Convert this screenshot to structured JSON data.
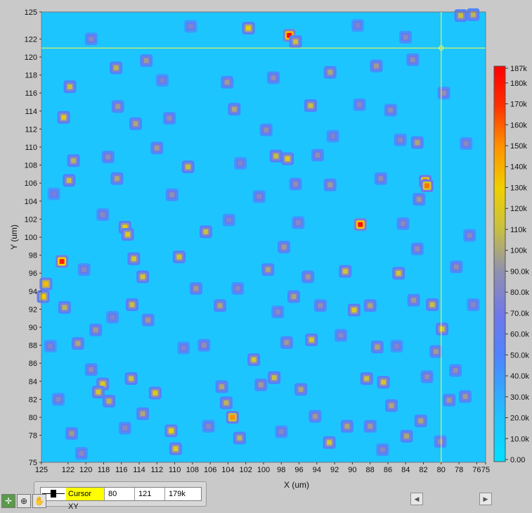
{
  "chart_data": {
    "type": "heatmap",
    "title": "",
    "xlabel": "X (um)",
    "ylabel": "Y (um)",
    "x_ticks": [
      125,
      122,
      120,
      118,
      116,
      114,
      112,
      110,
      108,
      106,
      104,
      102,
      100,
      98,
      96,
      94,
      92,
      90,
      88,
      86,
      84,
      82,
      80,
      78,
      76,
      75
    ],
    "x_tick_labels": [
      "125",
      "122",
      "120",
      "118",
      "116",
      "114",
      "112",
      "110",
      "108",
      "106",
      "104",
      "102",
      "100",
      "98",
      "96",
      "94",
      "92",
      "90",
      "88",
      "86",
      "84",
      "82",
      "80",
      "78",
      "76",
      "75"
    ],
    "y_ticks": [
      125,
      122,
      120,
      118,
      116,
      114,
      112,
      110,
      108,
      106,
      104,
      102,
      100,
      98,
      96,
      94,
      92,
      90,
      88,
      86,
      84,
      82,
      80,
      78,
      75
    ],
    "y_tick_labels": [
      "125",
      "122",
      "120",
      "118",
      "116",
      "114",
      "112",
      "110",
      "108",
      "106",
      "104",
      "102",
      "100",
      "98",
      "96",
      "94",
      "92",
      "90",
      "88",
      "86",
      "84",
      "82",
      "80",
      "78",
      "75"
    ],
    "xlim": [
      125,
      75
    ],
    "ylim": [
      75,
      125
    ],
    "colorbar": {
      "range": [
        0,
        187000
      ],
      "ticks": [
        0,
        10000,
        20000,
        30000,
        40000,
        50000,
        60000,
        70000,
        80000,
        90000,
        100000,
        110000,
        120000,
        130000,
        140000,
        150000,
        160000,
        170000,
        180000,
        187000
      ],
      "tick_labels": [
        "0.00",
        "10.0k",
        "20.0k",
        "30.0k",
        "40.0k",
        "50.0k",
        "60.0k",
        "70.0k",
        "80.0k",
        "90.0k",
        "100k",
        "110k",
        "120k",
        "130k",
        "140k",
        "150k",
        "160k",
        "170k",
        "180k",
        "187k"
      ]
    },
    "cursor": {
      "x": 80,
      "y": 121,
      "z": 179000
    },
    "background_level": 20000,
    "spots": [
      {
        "x": 122.5,
        "y": 113.3,
        "v": 120000
      },
      {
        "x": 121.8,
        "y": 116.7,
        "v": 110000
      },
      {
        "x": 121.4,
        "y": 108.5,
        "v": 105000
      },
      {
        "x": 121.9,
        "y": 106.3,
        "v": 110000
      },
      {
        "x": 123.6,
        "y": 104.8,
        "v": 75000
      },
      {
        "x": 122.7,
        "y": 97.3,
        "v": 175000
      },
      {
        "x": 124.5,
        "y": 94.8,
        "v": 135000
      },
      {
        "x": 124.8,
        "y": 93.4,
        "v": 130000
      },
      {
        "x": 122.4,
        "y": 92.2,
        "v": 105000
      },
      {
        "x": 118.9,
        "y": 89.7,
        "v": 95000
      },
      {
        "x": 120.9,
        "y": 88.2,
        "v": 100000
      },
      {
        "x": 119.4,
        "y": 85.3,
        "v": 90000
      },
      {
        "x": 118.1,
        "y": 83.7,
        "v": 120000
      },
      {
        "x": 118.6,
        "y": 82.8,
        "v": 115000
      },
      {
        "x": 117.4,
        "y": 81.8,
        "v": 105000
      },
      {
        "x": 121.6,
        "y": 78.2,
        "v": 95000
      },
      {
        "x": 120.5,
        "y": 76.0,
        "v": 85000
      },
      {
        "x": 116.4,
        "y": 114.5,
        "v": 95000
      },
      {
        "x": 116.6,
        "y": 118.8,
        "v": 105000
      },
      {
        "x": 114.4,
        "y": 112.6,
        "v": 100000
      },
      {
        "x": 117.5,
        "y": 108.9,
        "v": 90000
      },
      {
        "x": 116.5,
        "y": 106.5,
        "v": 100000
      },
      {
        "x": 115.6,
        "y": 101.1,
        "v": 125000
      },
      {
        "x": 115.3,
        "y": 100.3,
        "v": 120000
      },
      {
        "x": 114.6,
        "y": 97.6,
        "v": 115000
      },
      {
        "x": 113.6,
        "y": 95.6,
        "v": 115000
      },
      {
        "x": 114.8,
        "y": 92.5,
        "v": 110000
      },
      {
        "x": 113.0,
        "y": 90.8,
        "v": 95000
      },
      {
        "x": 114.9,
        "y": 84.3,
        "v": 110000
      },
      {
        "x": 112.2,
        "y": 82.7,
        "v": 120000
      },
      {
        "x": 113.6,
        "y": 80.4,
        "v": 100000
      },
      {
        "x": 110.4,
        "y": 78.5,
        "v": 125000
      },
      {
        "x": 109.9,
        "y": 76.5,
        "v": 120000
      },
      {
        "x": 113.2,
        "y": 119.6,
        "v": 95000
      },
      {
        "x": 110.6,
        "y": 113.2,
        "v": 90000
      },
      {
        "x": 112.0,
        "y": 109.9,
        "v": 95000
      },
      {
        "x": 108.5,
        "y": 107.8,
        "v": 110000
      },
      {
        "x": 110.3,
        "y": 104.7,
        "v": 90000
      },
      {
        "x": 109.5,
        "y": 97.8,
        "v": 115000
      },
      {
        "x": 106.5,
        "y": 100.6,
        "v": 110000
      },
      {
        "x": 107.6,
        "y": 94.3,
        "v": 95000
      },
      {
        "x": 104.9,
        "y": 92.4,
        "v": 100000
      },
      {
        "x": 106.7,
        "y": 88.0,
        "v": 90000
      },
      {
        "x": 104.7,
        "y": 83.4,
        "v": 100000
      },
      {
        "x": 106.2,
        "y": 79.0,
        "v": 85000
      },
      {
        "x": 102.7,
        "y": 77.7,
        "v": 105000
      },
      {
        "x": 103.5,
        "y": 80.0,
        "v": 150000
      },
      {
        "x": 104.2,
        "y": 81.6,
        "v": 105000
      },
      {
        "x": 101.1,
        "y": 86.4,
        "v": 115000
      },
      {
        "x": 100.3,
        "y": 83.6,
        "v": 95000
      },
      {
        "x": 98.8,
        "y": 84.4,
        "v": 110000
      },
      {
        "x": 97.4,
        "y": 88.3,
        "v": 95000
      },
      {
        "x": 101.7,
        "y": 123.2,
        "v": 125000
      },
      {
        "x": 97.1,
        "y": 122.4,
        "v": 185000
      },
      {
        "x": 96.4,
        "y": 121.7,
        "v": 110000
      },
      {
        "x": 104.1,
        "y": 117.2,
        "v": 95000
      },
      {
        "x": 103.3,
        "y": 114.2,
        "v": 100000
      },
      {
        "x": 99.7,
        "y": 111.9,
        "v": 90000
      },
      {
        "x": 98.6,
        "y": 109.0,
        "v": 110000
      },
      {
        "x": 97.3,
        "y": 108.7,
        "v": 120000
      },
      {
        "x": 100.5,
        "y": 104.5,
        "v": 85000
      },
      {
        "x": 96.4,
        "y": 105.9,
        "v": 90000
      },
      {
        "x": 97.7,
        "y": 98.9,
        "v": 95000
      },
      {
        "x": 99.5,
        "y": 96.4,
        "v": 100000
      },
      {
        "x": 95.0,
        "y": 95.6,
        "v": 95000
      },
      {
        "x": 96.6,
        "y": 93.4,
        "v": 100000
      },
      {
        "x": 93.6,
        "y": 92.4,
        "v": 90000
      },
      {
        "x": 94.6,
        "y": 88.6,
        "v": 115000
      },
      {
        "x": 95.8,
        "y": 83.1,
        "v": 100000
      },
      {
        "x": 94.2,
        "y": 80.1,
        "v": 95000
      },
      {
        "x": 92.6,
        "y": 77.2,
        "v": 115000
      },
      {
        "x": 90.6,
        "y": 79.0,
        "v": 100000
      },
      {
        "x": 92.5,
        "y": 118.3,
        "v": 100000
      },
      {
        "x": 94.7,
        "y": 114.6,
        "v": 110000
      },
      {
        "x": 93.9,
        "y": 109.1,
        "v": 90000
      },
      {
        "x": 92.5,
        "y": 105.8,
        "v": 95000
      },
      {
        "x": 89.1,
        "y": 101.4,
        "v": 180000
      },
      {
        "x": 90.8,
        "y": 96.2,
        "v": 115000
      },
      {
        "x": 88.0,
        "y": 92.4,
        "v": 100000
      },
      {
        "x": 89.8,
        "y": 91.9,
        "v": 120000
      },
      {
        "x": 87.2,
        "y": 87.8,
        "v": 100000
      },
      {
        "x": 88.4,
        "y": 84.3,
        "v": 110000
      },
      {
        "x": 86.5,
        "y": 83.9,
        "v": 115000
      },
      {
        "x": 85.6,
        "y": 81.3,
        "v": 100000
      },
      {
        "x": 88.0,
        "y": 79.0,
        "v": 95000
      },
      {
        "x": 83.9,
        "y": 77.9,
        "v": 100000
      },
      {
        "x": 87.3,
        "y": 119.0,
        "v": 95000
      },
      {
        "x": 85.7,
        "y": 114.1,
        "v": 90000
      },
      {
        "x": 84.6,
        "y": 110.8,
        "v": 85000
      },
      {
        "x": 86.8,
        "y": 106.5,
        "v": 90000
      },
      {
        "x": 82.7,
        "y": 110.5,
        "v": 100000
      },
      {
        "x": 81.8,
        "y": 106.2,
        "v": 160000
      },
      {
        "x": 81.6,
        "y": 105.7,
        "v": 155000
      },
      {
        "x": 82.5,
        "y": 104.2,
        "v": 95000
      },
      {
        "x": 84.3,
        "y": 101.5,
        "v": 85000
      },
      {
        "x": 82.7,
        "y": 98.7,
        "v": 90000
      },
      {
        "x": 84.8,
        "y": 96.0,
        "v": 115000
      },
      {
        "x": 83.1,
        "y": 93.0,
        "v": 95000
      },
      {
        "x": 81.0,
        "y": 92.5,
        "v": 110000
      },
      {
        "x": 79.9,
        "y": 89.8,
        "v": 115000
      },
      {
        "x": 80.6,
        "y": 87.3,
        "v": 95000
      },
      {
        "x": 78.4,
        "y": 85.2,
        "v": 90000
      },
      {
        "x": 81.6,
        "y": 84.5,
        "v": 90000
      },
      {
        "x": 79.1,
        "y": 81.9,
        "v": 95000
      },
      {
        "x": 77.3,
        "y": 82.3,
        "v": 95000
      },
      {
        "x": 82.3,
        "y": 79.6,
        "v": 100000
      },
      {
        "x": 80.1,
        "y": 77.3,
        "v": 90000
      },
      {
        "x": 77.8,
        "y": 124.6,
        "v": 110000
      },
      {
        "x": 76.4,
        "y": 124.7,
        "v": 105000
      },
      {
        "x": 83.2,
        "y": 119.7,
        "v": 90000
      },
      {
        "x": 79.7,
        "y": 116.0,
        "v": 90000
      },
      {
        "x": 77.2,
        "y": 110.4,
        "v": 85000
      },
      {
        "x": 76.8,
        "y": 100.2,
        "v": 85000
      },
      {
        "x": 78.3,
        "y": 96.7,
        "v": 90000
      },
      {
        "x": 76.4,
        "y": 92.5,
        "v": 85000
      },
      {
        "x": 124.0,
        "y": 87.9,
        "v": 80000
      },
      {
        "x": 123.1,
        "y": 82.0,
        "v": 85000
      },
      {
        "x": 119.4,
        "y": 122.0,
        "v": 85000
      },
      {
        "x": 108.2,
        "y": 123.4,
        "v": 80000
      },
      {
        "x": 89.4,
        "y": 123.5,
        "v": 80000
      },
      {
        "x": 84.0,
        "y": 122.2,
        "v": 85000
      },
      {
        "x": 111.4,
        "y": 117.4,
        "v": 80000
      },
      {
        "x": 98.9,
        "y": 117.7,
        "v": 90000
      },
      {
        "x": 89.2,
        "y": 114.7,
        "v": 85000
      },
      {
        "x": 102.6,
        "y": 108.2,
        "v": 80000
      },
      {
        "x": 92.2,
        "y": 111.2,
        "v": 80000
      },
      {
        "x": 118.1,
        "y": 102.5,
        "v": 85000
      },
      {
        "x": 103.9,
        "y": 101.9,
        "v": 80000
      },
      {
        "x": 96.1,
        "y": 101.6,
        "v": 85000
      },
      {
        "x": 120.2,
        "y": 96.4,
        "v": 85000
      },
      {
        "x": 102.9,
        "y": 94.3,
        "v": 85000
      },
      {
        "x": 91.3,
        "y": 89.1,
        "v": 85000
      },
      {
        "x": 117.0,
        "y": 91.1,
        "v": 80000
      },
      {
        "x": 109.0,
        "y": 87.7,
        "v": 80000
      },
      {
        "x": 98.4,
        "y": 91.7,
        "v": 85000
      },
      {
        "x": 85.0,
        "y": 87.9,
        "v": 80000
      },
      {
        "x": 115.6,
        "y": 78.8,
        "v": 85000
      },
      {
        "x": 98.0,
        "y": 78.4,
        "v": 85000
      },
      {
        "x": 86.6,
        "y": 76.4,
        "v": 85000
      }
    ]
  },
  "cursor_legend": {
    "name": "Cursor XY",
    "x": "80",
    "y": "121",
    "z": "179k"
  },
  "tools": [
    "cursor-icon",
    "zoom-icon",
    "pan-icon"
  ]
}
